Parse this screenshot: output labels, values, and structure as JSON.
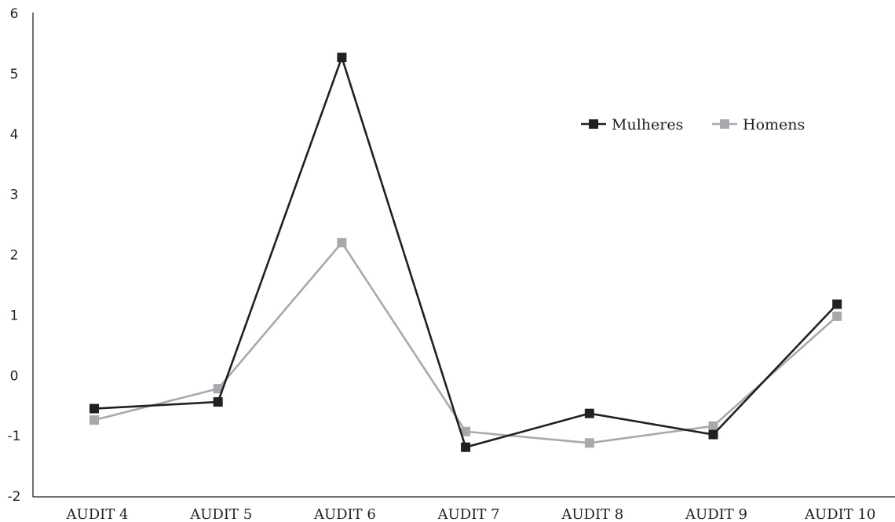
{
  "chart_data": {
    "type": "line",
    "title": "",
    "xlabel": "",
    "ylabel": "",
    "categories": [
      "AUDIT 4",
      "AUDIT 5",
      "AUDIT 6",
      "AUDIT 7",
      "AUDIT 8",
      "AUDIT 9",
      "AUDIT 10"
    ],
    "ylim": [
      -2,
      6
    ],
    "yticks": [
      "-2",
      "-1",
      "0",
      "1",
      "2",
      "3",
      "4",
      "5",
      "6"
    ],
    "grid": false,
    "legend_position": "top-right",
    "series": [
      {
        "name": "Mulheres",
        "color": "#231f20",
        "values": [
          -0.55,
          -0.44,
          5.27,
          -1.19,
          -0.63,
          -0.98,
          1.18
        ]
      },
      {
        "name": "Homens",
        "color": "#a7a9ac",
        "values": [
          -0.74,
          -0.22,
          2.2,
          -0.93,
          -1.12,
          -0.84,
          0.98
        ]
      }
    ]
  }
}
